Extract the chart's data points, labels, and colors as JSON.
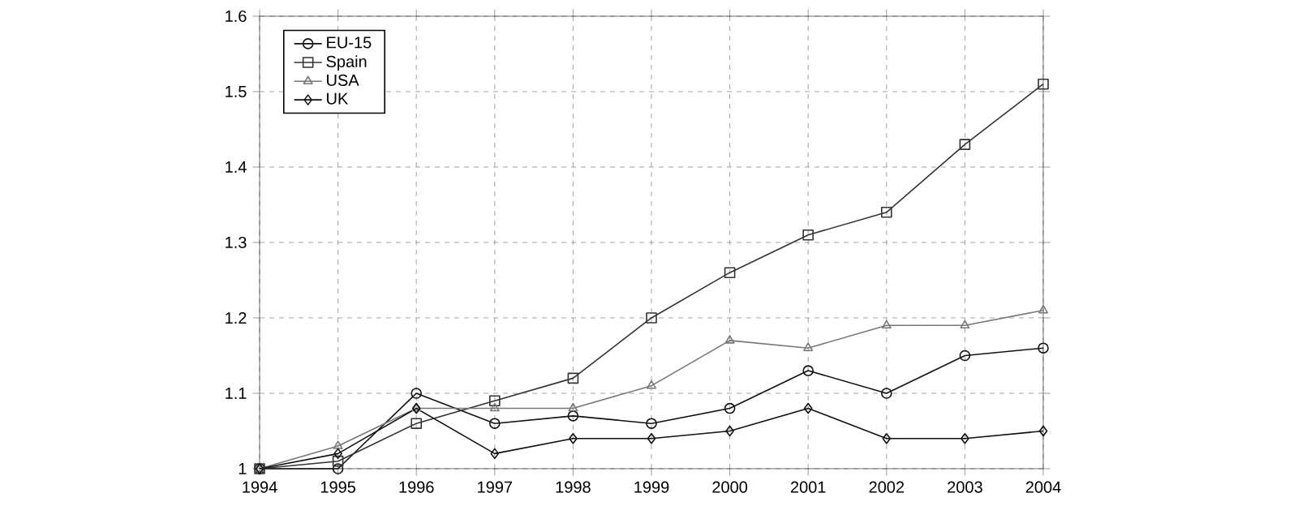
{
  "chart_data": {
    "type": "line",
    "x": [
      1994,
      1995,
      1996,
      1997,
      1998,
      1999,
      2000,
      2001,
      2002,
      2003,
      2004
    ],
    "series": [
      {
        "name": "EU-15",
        "color": "#111111",
        "marker": "circle",
        "values": [
          1.0,
          1.0,
          1.1,
          1.06,
          1.07,
          1.06,
          1.08,
          1.13,
          1.1,
          1.15,
          1.16
        ]
      },
      {
        "name": "Spain",
        "color": "#333333",
        "marker": "square",
        "values": [
          1.0,
          1.01,
          1.06,
          1.09,
          1.12,
          1.2,
          1.26,
          1.31,
          1.34,
          1.43,
          1.51
        ]
      },
      {
        "name": "USA",
        "color": "#777777",
        "marker": "triangle",
        "values": [
          1.0,
          1.03,
          1.08,
          1.08,
          1.08,
          1.11,
          1.17,
          1.16,
          1.19,
          1.19,
          1.21
        ]
      },
      {
        "name": "UK",
        "color": "#111111",
        "marker": "diamond",
        "values": [
          1.0,
          1.02,
          1.08,
          1.02,
          1.04,
          1.04,
          1.05,
          1.08,
          1.04,
          1.04,
          1.05
        ]
      }
    ],
    "xlim": [
      1994,
      2004
    ],
    "ylim": [
      1,
      1.6
    ],
    "xticks": [
      1994,
      1995,
      1996,
      1997,
      1998,
      1999,
      2000,
      2001,
      2002,
      2003,
      2004
    ],
    "yticks": [
      1,
      1.1,
      1.2,
      1.3,
      1.4,
      1.5,
      1.6
    ],
    "grid": true,
    "legend": "top left",
    "line_style": "solid"
  }
}
